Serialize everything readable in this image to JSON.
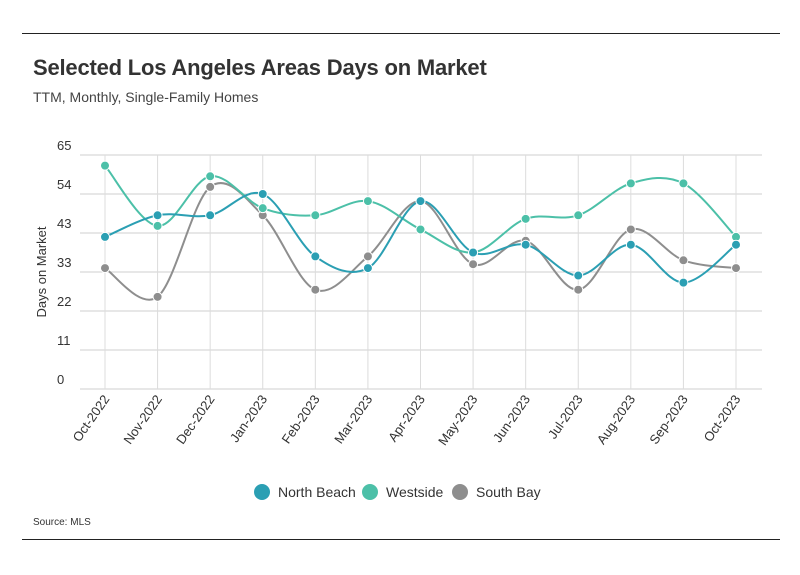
{
  "header": {
    "title": "Selected Los Angeles Areas Days on Market",
    "subtitle": "TTM, Monthly, Single-Family Homes"
  },
  "footer": {
    "source": "Source: MLS"
  },
  "chart_data": {
    "type": "line",
    "ylabel": "Days on Market",
    "xlabel": "",
    "ylim": [
      0,
      65
    ],
    "yticks": [
      0,
      11,
      22,
      33,
      43,
      54,
      65
    ],
    "grid": "horizontal",
    "legend_position": "bottom-center",
    "x": [
      "Oct-2022",
      "Nov-2022",
      "Dec-2022",
      "Jan-2023",
      "Feb-2023",
      "Mar-2023",
      "Apr-2023",
      "May-2023",
      "Jun-2023",
      "Jul-2023",
      "Aug-2023",
      "Sep-2023",
      "Oct-2023"
    ],
    "series": [
      {
        "name": "North Beach",
        "color": "#2b9fb3",
        "values": [
          42,
          48,
          48,
          54,
          37,
          34,
          52,
          38,
          40,
          32,
          40,
          30,
          40
        ]
      },
      {
        "name": "Westside",
        "color": "#4cc0a8",
        "values": [
          62,
          45,
          59,
          50,
          48,
          52,
          44,
          38,
          47,
          48,
          57,
          57,
          42
        ]
      },
      {
        "name": "South Bay",
        "color": "#8e8e8e",
        "values": [
          34,
          26,
          56,
          48,
          28,
          37,
          52,
          35,
          41,
          28,
          44,
          36,
          34
        ]
      }
    ]
  }
}
